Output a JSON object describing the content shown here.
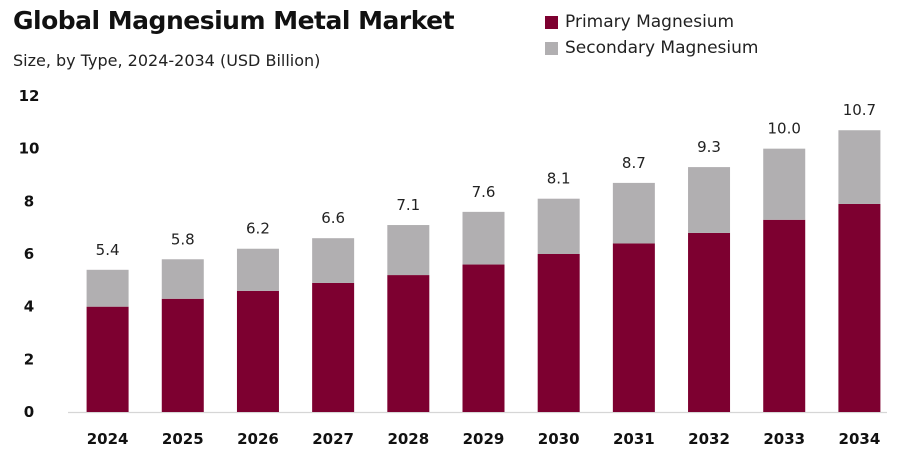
{
  "chart_data": {
    "type": "bar",
    "stacked": true,
    "title": "Global Magnesium Metal Market",
    "subtitle": "Size, by Type, 2024-2034 (USD Billion)",
    "xlabel": "",
    "ylabel": "",
    "ylim": [
      0,
      12
    ],
    "yticks": [
      0,
      2,
      4,
      6,
      8,
      10,
      12
    ],
    "grid": false,
    "legend_position": "top-right",
    "categories": [
      "2024",
      "2025",
      "2026",
      "2027",
      "2028",
      "2029",
      "2030",
      "2031",
      "2032",
      "2033",
      "2034"
    ],
    "series": [
      {
        "name": "Primary Magnesium",
        "color": "#7d0030",
        "values": [
          4.0,
          4.3,
          4.6,
          4.9,
          5.2,
          5.6,
          6.0,
          6.4,
          6.8,
          7.3,
          7.9
        ]
      },
      {
        "name": "Secondary Magnesium",
        "color": "#b1afb1",
        "values": [
          1.4,
          1.5,
          1.6,
          1.7,
          1.9,
          2.0,
          2.1,
          2.3,
          2.5,
          2.7,
          2.8
        ]
      }
    ],
    "totals": [
      "5.4",
      "5.8",
      "6.2",
      "6.6",
      "7.1",
      "7.6",
      "8.1",
      "8.7",
      "9.3",
      "10.0",
      "10.7"
    ]
  }
}
